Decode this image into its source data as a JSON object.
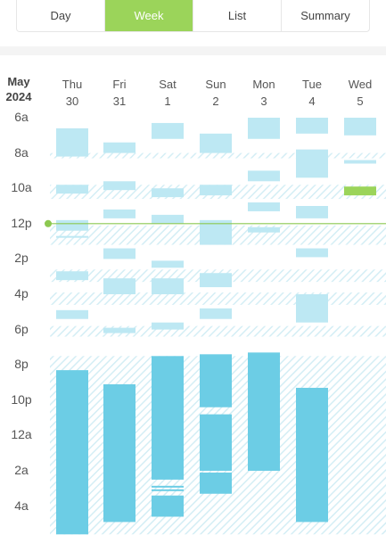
{
  "tabs": [
    {
      "label": "Day",
      "active": false
    },
    {
      "label": "Week",
      "active": true
    },
    {
      "label": "List",
      "active": false
    },
    {
      "label": "Summary",
      "active": false
    }
  ],
  "calendar": {
    "month": "May",
    "year": "2024",
    "days": [
      {
        "weekday": "Thu",
        "date": "30"
      },
      {
        "weekday": "Fri",
        "date": "31"
      },
      {
        "weekday": "Sat",
        "date": "1"
      },
      {
        "weekday": "Sun",
        "date": "2"
      },
      {
        "weekday": "Mon",
        "date": "3"
      },
      {
        "weekday": "Tue",
        "date": "4"
      },
      {
        "weekday": "Wed",
        "date": "5"
      }
    ],
    "time_labels": [
      "6a",
      "8a",
      "10a",
      "12p",
      "2p",
      "4p",
      "6p",
      "8p",
      "10p",
      "12a",
      "2a",
      "4a"
    ],
    "current_time_hours": 12.0,
    "colors": {
      "activity": "#bde8f3",
      "sleep": "#6ccde5",
      "highlight": "#9bd45a",
      "hatch": "#d4eef5",
      "now_line": "#8cc850"
    },
    "hatched_periods": [
      {
        "start": 8.0,
        "end": 8.3
      },
      {
        "start": 9.8,
        "end": 10.6
      },
      {
        "start": 12.1,
        "end": 13.2
      },
      {
        "start": 14.6,
        "end": 15.3
      },
      {
        "start": 15.9,
        "end": 16.6
      },
      {
        "start": 17.8,
        "end": 18.4
      },
      {
        "start": 19.5,
        "end": 29.6
      }
    ],
    "events": [
      {
        "day": 0,
        "start": 6.6,
        "end": 8.2,
        "type": "activity"
      },
      {
        "day": 0,
        "start": 9.8,
        "end": 10.3,
        "type": "activity"
      },
      {
        "day": 0,
        "start": 11.8,
        "end": 12.4,
        "type": "activity"
      },
      {
        "day": 0,
        "start": 12.7,
        "end": 12.8,
        "type": "activity"
      },
      {
        "day": 0,
        "start": 14.7,
        "end": 15.2,
        "type": "activity"
      },
      {
        "day": 0,
        "start": 16.9,
        "end": 17.4,
        "type": "activity"
      },
      {
        "day": 0,
        "start": 20.3,
        "end": 29.6,
        "type": "sleep"
      },
      {
        "day": 1,
        "start": 7.4,
        "end": 8.0,
        "type": "activity"
      },
      {
        "day": 1,
        "start": 9.6,
        "end": 10.1,
        "type": "activity"
      },
      {
        "day": 1,
        "start": 11.2,
        "end": 11.7,
        "type": "activity"
      },
      {
        "day": 1,
        "start": 13.4,
        "end": 14.0,
        "type": "activity"
      },
      {
        "day": 1,
        "start": 15.1,
        "end": 16.0,
        "type": "activity"
      },
      {
        "day": 1,
        "start": 17.9,
        "end": 18.2,
        "type": "activity"
      },
      {
        "day": 1,
        "start": 21.1,
        "end": 28.9,
        "type": "sleep"
      },
      {
        "day": 2,
        "start": 6.3,
        "end": 7.2,
        "type": "activity"
      },
      {
        "day": 2,
        "start": 10.0,
        "end": 10.5,
        "type": "activity"
      },
      {
        "day": 2,
        "start": 11.5,
        "end": 12.0,
        "type": "activity"
      },
      {
        "day": 2,
        "start": 14.1,
        "end": 14.5,
        "type": "activity"
      },
      {
        "day": 2,
        "start": 15.1,
        "end": 16.0,
        "type": "activity"
      },
      {
        "day": 2,
        "start": 17.6,
        "end": 18.0,
        "type": "activity"
      },
      {
        "day": 2,
        "start": 19.5,
        "end": 26.5,
        "type": "sleep"
      },
      {
        "day": 2,
        "start": 26.85,
        "end": 26.95,
        "type": "sleep"
      },
      {
        "day": 2,
        "start": 27.05,
        "end": 27.1,
        "type": "sleep"
      },
      {
        "day": 2,
        "start": 27.4,
        "end": 28.6,
        "type": "sleep"
      },
      {
        "day": 3,
        "start": 6.9,
        "end": 8.0,
        "type": "activity"
      },
      {
        "day": 3,
        "start": 9.8,
        "end": 10.4,
        "type": "activity"
      },
      {
        "day": 3,
        "start": 11.8,
        "end": 13.2,
        "type": "activity"
      },
      {
        "day": 3,
        "start": 14.8,
        "end": 15.6,
        "type": "activity"
      },
      {
        "day": 3,
        "start": 16.8,
        "end": 17.4,
        "type": "activity"
      },
      {
        "day": 3,
        "start": 19.4,
        "end": 22.4,
        "type": "sleep"
      },
      {
        "day": 3,
        "start": 22.8,
        "end": 26.0,
        "type": "sleep"
      },
      {
        "day": 3,
        "start": 26.1,
        "end": 27.3,
        "type": "sleep"
      },
      {
        "day": 4,
        "start": 6.0,
        "end": 7.2,
        "type": "activity"
      },
      {
        "day": 4,
        "start": 9.0,
        "end": 9.6,
        "type": "activity"
      },
      {
        "day": 4,
        "start": 10.8,
        "end": 11.3,
        "type": "activity"
      },
      {
        "day": 4,
        "start": 12.2,
        "end": 12.5,
        "type": "activity"
      },
      {
        "day": 4,
        "start": 19.3,
        "end": 26.0,
        "type": "sleep"
      },
      {
        "day": 5,
        "start": 6.0,
        "end": 6.9,
        "type": "activity"
      },
      {
        "day": 5,
        "start": 7.8,
        "end": 9.4,
        "type": "activity"
      },
      {
        "day": 5,
        "start": 11.0,
        "end": 11.7,
        "type": "activity"
      },
      {
        "day": 5,
        "start": 13.4,
        "end": 13.9,
        "type": "activity"
      },
      {
        "day": 5,
        "start": 16.0,
        "end": 17.6,
        "type": "activity"
      },
      {
        "day": 5,
        "start": 21.3,
        "end": 28.9,
        "type": "sleep"
      },
      {
        "day": 6,
        "start": 6.0,
        "end": 7.0,
        "type": "activity"
      },
      {
        "day": 6,
        "start": 8.4,
        "end": 8.6,
        "type": "activity"
      },
      {
        "day": 6,
        "start": 9.9,
        "end": 10.4,
        "type": "highlight"
      }
    ]
  }
}
